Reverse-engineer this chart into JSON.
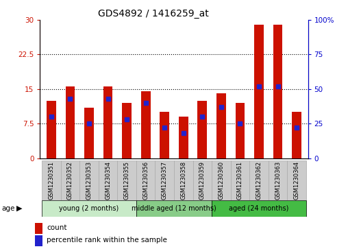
{
  "title": "GDS4892 / 1416259_at",
  "samples": [
    "GSM1230351",
    "GSM1230352",
    "GSM1230353",
    "GSM1230354",
    "GSM1230355",
    "GSM1230356",
    "GSM1230357",
    "GSM1230358",
    "GSM1230359",
    "GSM1230360",
    "GSM1230361",
    "GSM1230362",
    "GSM1230363",
    "GSM1230364"
  ],
  "counts": [
    12.5,
    15.5,
    11.0,
    15.5,
    12.0,
    14.5,
    10.0,
    9.0,
    12.5,
    14.0,
    12.0,
    29.0,
    29.0,
    10.0
  ],
  "percentiles": [
    30,
    43,
    25,
    43,
    28,
    40,
    22,
    18,
    30,
    37,
    25,
    52,
    52,
    22
  ],
  "bar_color": "#cc1100",
  "blue_color": "#2222cc",
  "left_ylim": [
    0,
    30
  ],
  "right_ylim": [
    0,
    100
  ],
  "left_yticks": [
    0,
    7.5,
    15,
    22.5,
    30
  ],
  "right_yticks": [
    0,
    25,
    50,
    75,
    100
  ],
  "right_yticklabels": [
    "0",
    "25",
    "50",
    "75",
    "100%"
  ],
  "group_labels": [
    "young (2 months)",
    "middle aged (12 months)",
    "aged (24 months)"
  ],
  "group_starts": [
    0,
    5,
    9
  ],
  "group_ends": [
    5,
    9,
    14
  ],
  "group_colors": [
    "#c8eac8",
    "#88cc88",
    "#44bb44"
  ],
  "age_label": "age",
  "legend_count_label": "count",
  "legend_pct_label": "percentile rank within the sample",
  "background_color": "#ffffff",
  "bar_width": 0.5,
  "blue_marker_size": 4,
  "tick_label_bg": "#cccccc",
  "tick_label_edgecolor": "#aaaaaa"
}
